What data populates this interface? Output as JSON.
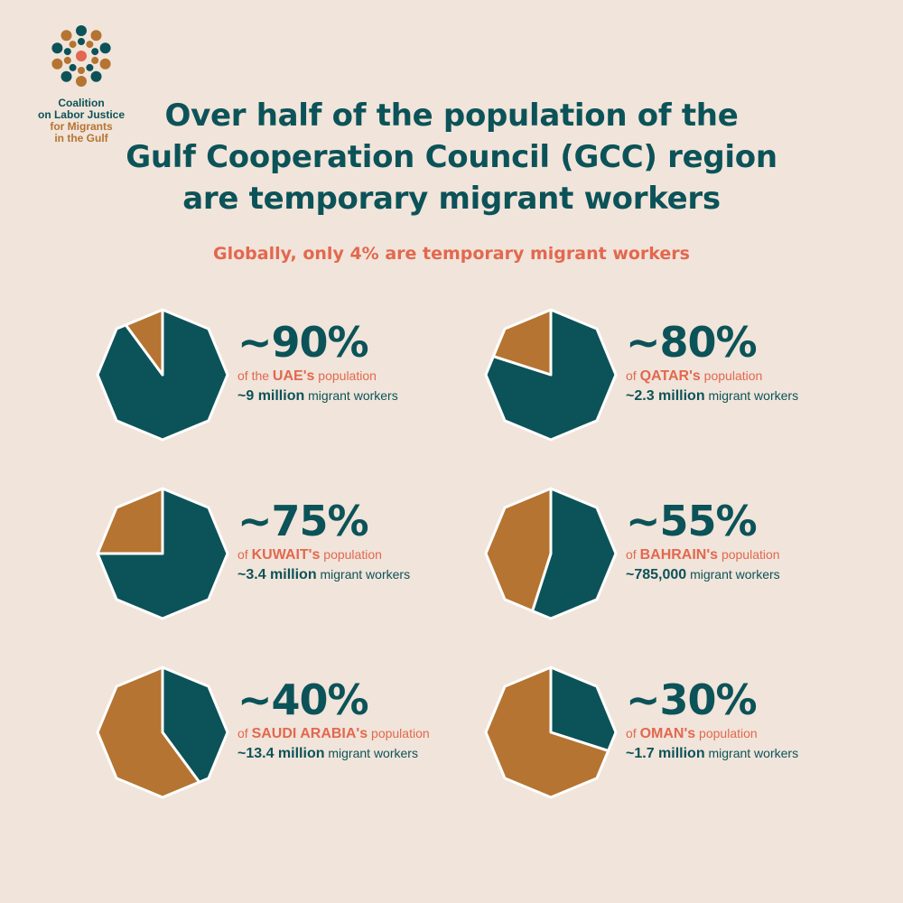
{
  "logo": {
    "lines": [
      "Coalition",
      "on Labor Justice",
      "for Migrants",
      "in the Gulf"
    ]
  },
  "title_lines": [
    "Over half of the population of the",
    "Gulf Cooperation Council (GCC) region",
    "are temporary migrant workers"
  ],
  "subtitle": "Globally, only 4% are temporary migrant workers",
  "colors": {
    "background": "#f1e4da",
    "migrant": "#0b5358",
    "other": "#b57431",
    "accent": "#e2684f"
  },
  "chart_data": {
    "type": "pie",
    "title": "Over half of the population of the Gulf Cooperation Council (GCC) region are temporary migrant workers",
    "subtitle": "Globally, only 4% are temporary migrant workers",
    "charts": [
      {
        "country": "UAE's",
        "percent": 90,
        "pct_label": "~90%",
        "pop_prefix": "of the ",
        "pop_suffix": " population",
        "workers": "~9 million",
        "workers_suffix": " migrant workers"
      },
      {
        "country": "QATAR's",
        "percent": 80,
        "pct_label": "~80%",
        "pop_prefix": "of ",
        "pop_suffix": " population",
        "workers": "~2.3 million",
        "workers_suffix": " migrant workers"
      },
      {
        "country": "KUWAIT's",
        "percent": 75,
        "pct_label": "~75%",
        "pop_prefix": "of ",
        "pop_suffix": " population",
        "workers": "~3.4 million",
        "workers_suffix": " migrant workers"
      },
      {
        "country": "BAHRAIN's",
        "percent": 55,
        "pct_label": "~55%",
        "pop_prefix": "of ",
        "pop_suffix": " population",
        "workers": "~785,000",
        "workers_suffix": " migrant workers"
      },
      {
        "country": "SAUDI ARABIA's",
        "percent": 40,
        "pct_label": "~40%",
        "pop_prefix": "of ",
        "pop_suffix": " population",
        "workers": "~13.4 million",
        "workers_suffix": " migrant workers"
      },
      {
        "country": "OMAN's",
        "percent": 30,
        "pct_label": "~30%",
        "pop_prefix": "of ",
        "pop_suffix": " population",
        "workers": "~1.7 million",
        "workers_suffix": " migrant workers"
      }
    ]
  }
}
